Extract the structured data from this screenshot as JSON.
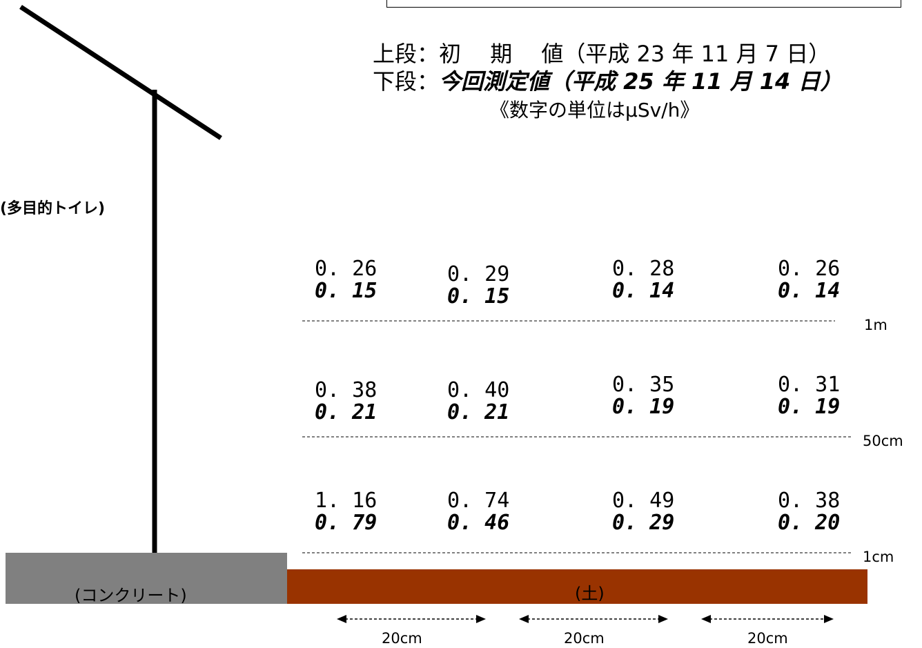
{
  "legend": {
    "upper_prefix": "上段：",
    "upper_text": "初　 期　 値（平成 23 年 11 月 7 日）",
    "lower_prefix": "下段：",
    "lower_text": "今回測定値（平成 25 年 11 月 14 日）",
    "unit_note": "《数字の単位はμSv/h》"
  },
  "labels": {
    "toilet": "(多目的トイレ)",
    "concrete": "(コンクリート)",
    "soil": "(土)"
  },
  "heights": [
    "1m",
    "50cm",
    "1cm"
  ],
  "distances": [
    "20cm",
    "20cm",
    "20cm"
  ],
  "measurements": {
    "row_1m": [
      {
        "initial": "0. 26",
        "current": "0. 15"
      },
      {
        "initial": "0. 29",
        "current": "0. 15"
      },
      {
        "initial": "0. 28",
        "current": "0. 14"
      },
      {
        "initial": "0. 26",
        "current": "0. 14"
      }
    ],
    "row_50cm": [
      {
        "initial": "0. 38",
        "current": "0. 21"
      },
      {
        "initial": "0. 40",
        "current": "0. 21"
      },
      {
        "initial": "0. 35",
        "current": "0. 19"
      },
      {
        "initial": "0. 31",
        "current": "0. 19"
      }
    ],
    "row_1cm": [
      {
        "initial": "1. 16",
        "current": "0. 79"
      },
      {
        "initial": "0. 74",
        "current": "0. 46"
      },
      {
        "initial": "0. 49",
        "current": "0. 29"
      },
      {
        "initial": "0. 38",
        "current": "0. 20"
      }
    ]
  },
  "colors": {
    "concrete": "#808080",
    "soil": "#993300",
    "line": "#000000"
  }
}
